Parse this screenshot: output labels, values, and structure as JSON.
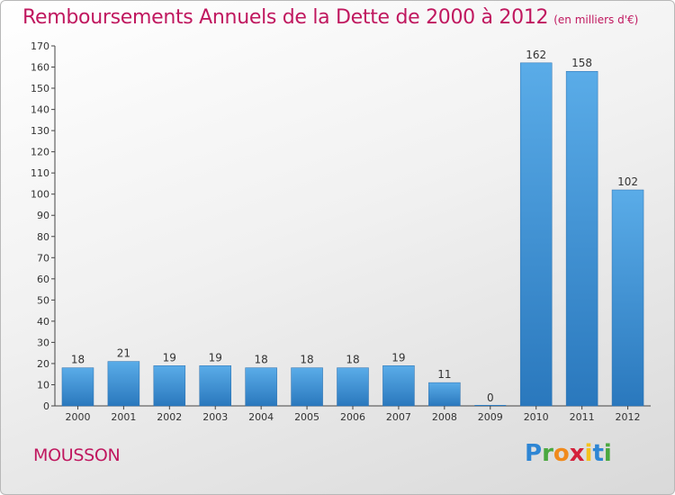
{
  "title": "Remboursements Annuels de la Dette de 2000 à 2012",
  "unit_note": "(en milliers d'€)",
  "commune": "MOUSSON",
  "logo": {
    "letters": [
      "P",
      "r",
      "o",
      "x",
      "i",
      "t",
      "i"
    ],
    "colors": [
      "#2e86d4",
      "#4aa83f",
      "#f08a1c",
      "#d4203a",
      "#f5c21b",
      "#2e86d4",
      "#4aa83f"
    ]
  },
  "colors": {
    "accent": "#c0185f",
    "bar_top": "#5aace8",
    "bar_bottom": "#2a78bd"
  },
  "chart_data": {
    "type": "bar",
    "title": "Remboursements Annuels de la Dette de 2000 à 2012",
    "subtitle": "(en milliers d'€)",
    "xlabel": "",
    "ylabel": "",
    "categories": [
      "2000",
      "2001",
      "2002",
      "2003",
      "2004",
      "2005",
      "2006",
      "2007",
      "2008",
      "2009",
      "2010",
      "2011",
      "2012"
    ],
    "values": [
      18,
      21,
      19,
      19,
      18,
      18,
      18,
      19,
      11,
      0,
      162,
      158,
      102
    ],
    "ylim": [
      0,
      170
    ],
    "yticks": [
      0,
      10,
      20,
      30,
      40,
      50,
      60,
      70,
      80,
      90,
      100,
      110,
      120,
      130,
      140,
      150,
      160,
      170
    ],
    "grid": false,
    "legend": "none"
  }
}
